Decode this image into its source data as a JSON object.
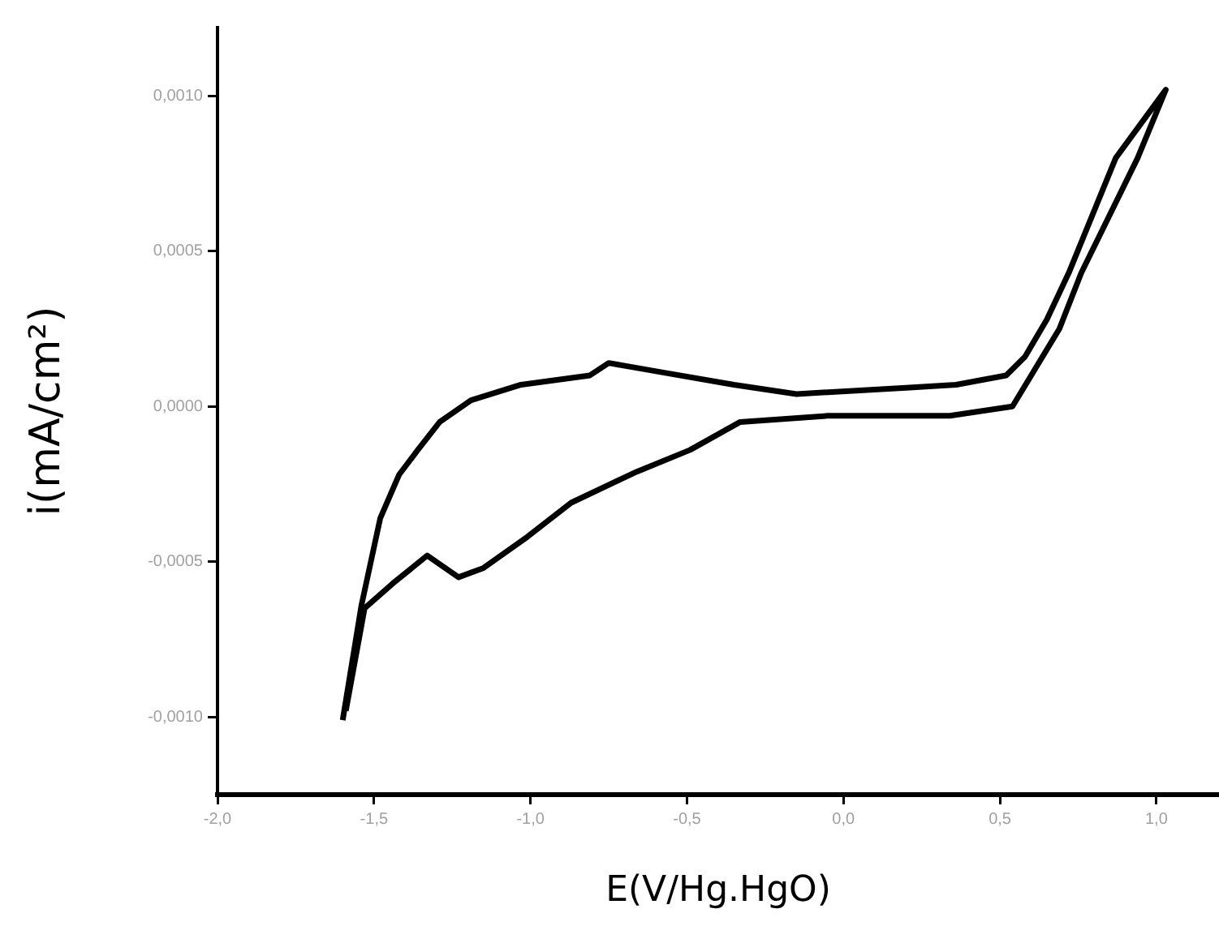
{
  "chart_data": {
    "type": "line",
    "xlabel": "E(V/Hg.HgO)",
    "ylabel": "i(mA/cm²)",
    "xlim": [
      -2.0,
      1.2
    ],
    "ylim": [
      -0.00125,
      0.00122
    ],
    "xticks": [
      {
        "value": -2.0,
        "label": "-2,0"
      },
      {
        "value": -1.5,
        "label": "-1,5"
      },
      {
        "value": -1.0,
        "label": "-1,0"
      },
      {
        "value": -0.5,
        "label": "-0,5"
      },
      {
        "value": 0.0,
        "label": "0,0"
      },
      {
        "value": 0.5,
        "label": "0,5"
      },
      {
        "value": 1.0,
        "label": "1,0"
      }
    ],
    "yticks": [
      {
        "value": -0.001,
        "label": "-0,0010"
      },
      {
        "value": -0.0005,
        "label": "-0,0005"
      },
      {
        "value": 0,
        "label": "0,0000"
      },
      {
        "value": 0.0005,
        "label": "0,0005"
      },
      {
        "value": 0.001,
        "label": "0,0010"
      }
    ],
    "grid": false,
    "legend": false,
    "marker": "none",
    "line_style": "solid",
    "series": [
      {
        "color": "#000000",
        "x": [
          -1.6,
          -1.54,
          -1.48,
          -1.42,
          -1.36,
          -1.29,
          -1.19,
          -1.03,
          -0.81,
          -0.75,
          -0.58,
          -0.35,
          -0.15,
          0.2,
          0.36,
          0.52,
          0.58,
          0.65,
          0.72,
          0.87,
          1.03,
          0.94,
          0.76,
          0.69,
          0.6,
          0.54,
          0.34,
          0.17,
          -0.05,
          -0.33,
          -0.49,
          -0.66,
          -0.87,
          -1.01,
          -1.15,
          -1.23,
          -1.33,
          -1.44,
          -1.53,
          -1.59
        ],
        "values": [
          -0.00101,
          -0.00064,
          -0.00036,
          -0.00022,
          -0.00014,
          -5e-05,
          2e-05,
          7e-05,
          0.0001,
          0.00014,
          0.00011,
          7e-05,
          4e-05,
          6e-05,
          7e-05,
          0.0001,
          0.00016,
          0.00028,
          0.00043,
          0.0008,
          0.00102,
          0.0008,
          0.00043,
          0.00025,
          0.0001,
          0,
          -3e-05,
          -3e-05,
          -3e-05,
          -5e-05,
          -0.00014,
          -0.00021,
          -0.00031,
          -0.00042,
          -0.00052,
          -0.00055,
          -0.00048,
          -0.00057,
          -0.00065,
          -0.00098
        ]
      }
    ]
  }
}
